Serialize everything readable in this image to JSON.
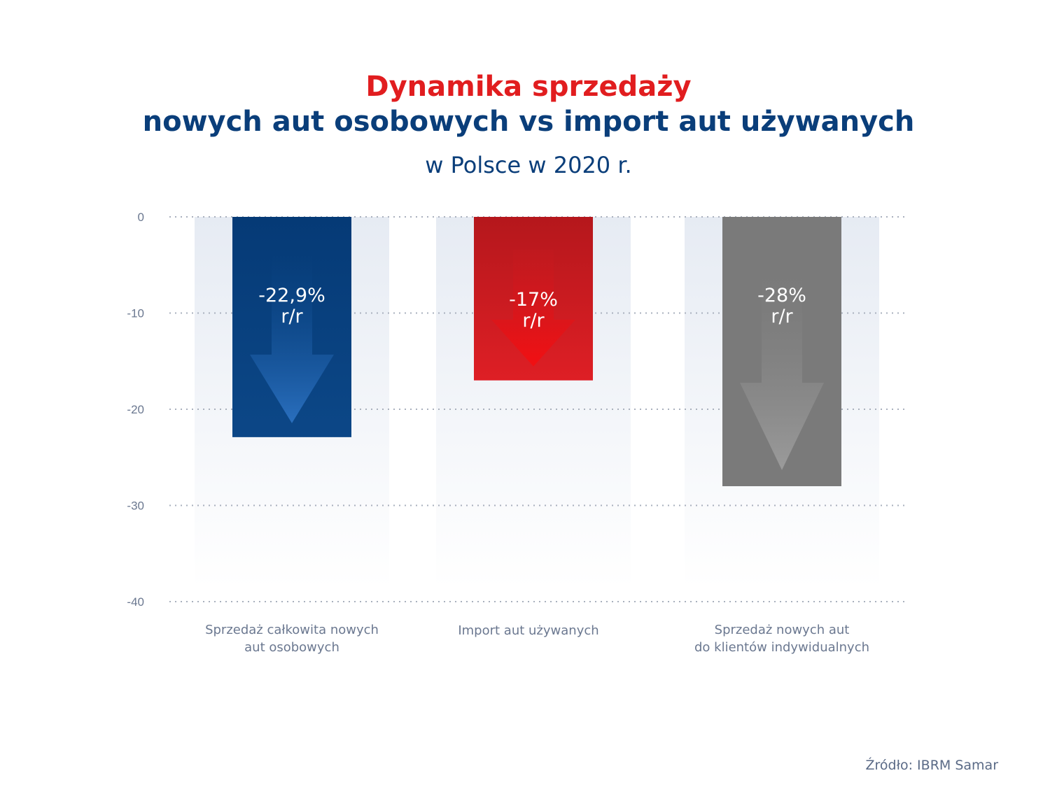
{
  "title": {
    "line1": "Dynamika sprzedaży",
    "line2": "nowych aut osobowych vs import aut używanych",
    "subtitle": "w Polsce w 2020 r."
  },
  "source": "Źródło: IBRM Samar",
  "colors": {
    "title_red": "#e11d1f",
    "title_blue": "#0a3e7a",
    "bar_blue": "#0b4585",
    "bar_red": "#d81e25",
    "bar_gray": "#7a7a7a"
  },
  "chart_data": {
    "type": "bar",
    "categories": [
      [
        "Sprzedaż całkowita nowych",
        "aut osobowych"
      ],
      [
        "Import aut używanych"
      ],
      [
        "Sprzedaż nowych aut",
        "do klientów indywidualnych"
      ]
    ],
    "values": [
      -22.9,
      -17,
      -28
    ],
    "value_labels": [
      [
        "-22,9%",
        "r/r"
      ],
      [
        "-17%",
        "r/r"
      ],
      [
        "-28%",
        "r/r"
      ]
    ],
    "bar_colors": [
      "#0b4585",
      "#d81e25",
      "#7a7a7a"
    ],
    "arrow_colors": [
      "#2a6fbe",
      "#f20f12",
      "#999999"
    ],
    "ylim": [
      -40,
      0
    ],
    "yticks": [
      0,
      -10,
      -20,
      -30,
      -40
    ],
    "ytick_labels": [
      "0",
      "-10",
      "-20",
      "-30",
      "-40"
    ],
    "grid": true,
    "xlabel": "",
    "ylabel": ""
  }
}
